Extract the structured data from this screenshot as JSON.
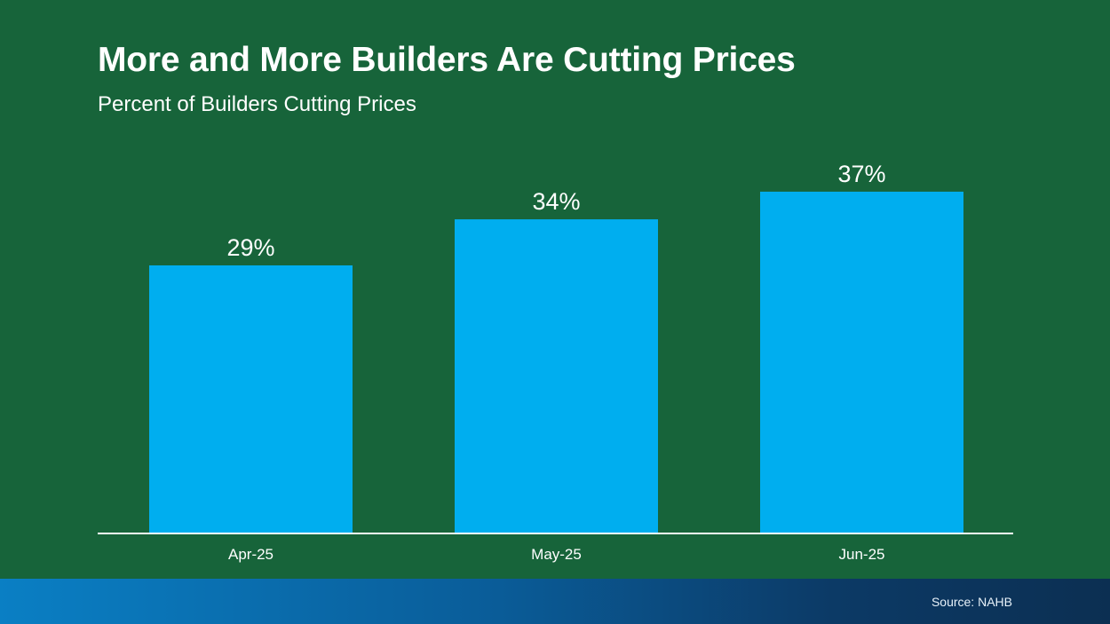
{
  "chart_data": {
    "type": "bar",
    "title": "More and More Builders Are Cutting Prices",
    "subtitle": "Percent of Builders Cutting Prices",
    "categories": [
      "Apr-25",
      "May-25",
      "Jun-25"
    ],
    "values": [
      29,
      34,
      37
    ],
    "data_labels": [
      "29%",
      "34%",
      "37%"
    ],
    "xlabel": "",
    "ylabel": "",
    "ylim": [
      0,
      50
    ],
    "grid": false,
    "bar_color": "#00aeef",
    "background_color": "#17643a"
  },
  "footer": {
    "source": "Source: NAHB"
  }
}
